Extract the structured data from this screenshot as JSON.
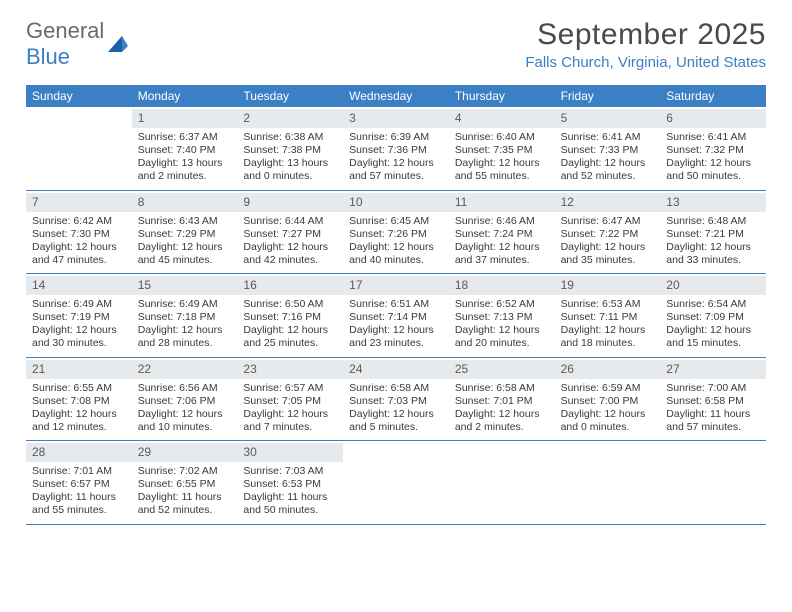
{
  "logo": {
    "word1": "General",
    "word2": "Blue"
  },
  "header": {
    "month_title": "September 2025",
    "location": "Falls Church, Virginia, United States"
  },
  "colors": {
    "header_bar": "#3b7fc4",
    "daynum_bg": "#e7eaed",
    "text": "#3a3a3a",
    "location_text": "#3b7fc4",
    "row_border": "#3b7fc4",
    "background": "#ffffff"
  },
  "weekdays": [
    "Sunday",
    "Monday",
    "Tuesday",
    "Wednesday",
    "Thursday",
    "Friday",
    "Saturday"
  ],
  "weeks": [
    [
      {
        "empty": true
      },
      {
        "n": "1",
        "sr": "Sunrise: 6:37 AM",
        "ss": "Sunset: 7:40 PM",
        "dl": "Daylight: 13 hours and 2 minutes."
      },
      {
        "n": "2",
        "sr": "Sunrise: 6:38 AM",
        "ss": "Sunset: 7:38 PM",
        "dl": "Daylight: 13 hours and 0 minutes."
      },
      {
        "n": "3",
        "sr": "Sunrise: 6:39 AM",
        "ss": "Sunset: 7:36 PM",
        "dl": "Daylight: 12 hours and 57 minutes."
      },
      {
        "n": "4",
        "sr": "Sunrise: 6:40 AM",
        "ss": "Sunset: 7:35 PM",
        "dl": "Daylight: 12 hours and 55 minutes."
      },
      {
        "n": "5",
        "sr": "Sunrise: 6:41 AM",
        "ss": "Sunset: 7:33 PM",
        "dl": "Daylight: 12 hours and 52 minutes."
      },
      {
        "n": "6",
        "sr": "Sunrise: 6:41 AM",
        "ss": "Sunset: 7:32 PM",
        "dl": "Daylight: 12 hours and 50 minutes."
      }
    ],
    [
      {
        "n": "7",
        "sr": "Sunrise: 6:42 AM",
        "ss": "Sunset: 7:30 PM",
        "dl": "Daylight: 12 hours and 47 minutes."
      },
      {
        "n": "8",
        "sr": "Sunrise: 6:43 AM",
        "ss": "Sunset: 7:29 PM",
        "dl": "Daylight: 12 hours and 45 minutes."
      },
      {
        "n": "9",
        "sr": "Sunrise: 6:44 AM",
        "ss": "Sunset: 7:27 PM",
        "dl": "Daylight: 12 hours and 42 minutes."
      },
      {
        "n": "10",
        "sr": "Sunrise: 6:45 AM",
        "ss": "Sunset: 7:26 PM",
        "dl": "Daylight: 12 hours and 40 minutes."
      },
      {
        "n": "11",
        "sr": "Sunrise: 6:46 AM",
        "ss": "Sunset: 7:24 PM",
        "dl": "Daylight: 12 hours and 37 minutes."
      },
      {
        "n": "12",
        "sr": "Sunrise: 6:47 AM",
        "ss": "Sunset: 7:22 PM",
        "dl": "Daylight: 12 hours and 35 minutes."
      },
      {
        "n": "13",
        "sr": "Sunrise: 6:48 AM",
        "ss": "Sunset: 7:21 PM",
        "dl": "Daylight: 12 hours and 33 minutes."
      }
    ],
    [
      {
        "n": "14",
        "sr": "Sunrise: 6:49 AM",
        "ss": "Sunset: 7:19 PM",
        "dl": "Daylight: 12 hours and 30 minutes."
      },
      {
        "n": "15",
        "sr": "Sunrise: 6:49 AM",
        "ss": "Sunset: 7:18 PM",
        "dl": "Daylight: 12 hours and 28 minutes."
      },
      {
        "n": "16",
        "sr": "Sunrise: 6:50 AM",
        "ss": "Sunset: 7:16 PM",
        "dl": "Daylight: 12 hours and 25 minutes."
      },
      {
        "n": "17",
        "sr": "Sunrise: 6:51 AM",
        "ss": "Sunset: 7:14 PM",
        "dl": "Daylight: 12 hours and 23 minutes."
      },
      {
        "n": "18",
        "sr": "Sunrise: 6:52 AM",
        "ss": "Sunset: 7:13 PM",
        "dl": "Daylight: 12 hours and 20 minutes."
      },
      {
        "n": "19",
        "sr": "Sunrise: 6:53 AM",
        "ss": "Sunset: 7:11 PM",
        "dl": "Daylight: 12 hours and 18 minutes."
      },
      {
        "n": "20",
        "sr": "Sunrise: 6:54 AM",
        "ss": "Sunset: 7:09 PM",
        "dl": "Daylight: 12 hours and 15 minutes."
      }
    ],
    [
      {
        "n": "21",
        "sr": "Sunrise: 6:55 AM",
        "ss": "Sunset: 7:08 PM",
        "dl": "Daylight: 12 hours and 12 minutes."
      },
      {
        "n": "22",
        "sr": "Sunrise: 6:56 AM",
        "ss": "Sunset: 7:06 PM",
        "dl": "Daylight: 12 hours and 10 minutes."
      },
      {
        "n": "23",
        "sr": "Sunrise: 6:57 AM",
        "ss": "Sunset: 7:05 PM",
        "dl": "Daylight: 12 hours and 7 minutes."
      },
      {
        "n": "24",
        "sr": "Sunrise: 6:58 AM",
        "ss": "Sunset: 7:03 PM",
        "dl": "Daylight: 12 hours and 5 minutes."
      },
      {
        "n": "25",
        "sr": "Sunrise: 6:58 AM",
        "ss": "Sunset: 7:01 PM",
        "dl": "Daylight: 12 hours and 2 minutes."
      },
      {
        "n": "26",
        "sr": "Sunrise: 6:59 AM",
        "ss": "Sunset: 7:00 PM",
        "dl": "Daylight: 12 hours and 0 minutes."
      },
      {
        "n": "27",
        "sr": "Sunrise: 7:00 AM",
        "ss": "Sunset: 6:58 PM",
        "dl": "Daylight: 11 hours and 57 minutes."
      }
    ],
    [
      {
        "n": "28",
        "sr": "Sunrise: 7:01 AM",
        "ss": "Sunset: 6:57 PM",
        "dl": "Daylight: 11 hours and 55 minutes."
      },
      {
        "n": "29",
        "sr": "Sunrise: 7:02 AM",
        "ss": "Sunset: 6:55 PM",
        "dl": "Daylight: 11 hours and 52 minutes."
      },
      {
        "n": "30",
        "sr": "Sunrise: 7:03 AM",
        "ss": "Sunset: 6:53 PM",
        "dl": "Daylight: 11 hours and 50 minutes."
      },
      {
        "empty": true
      },
      {
        "empty": true
      },
      {
        "empty": true
      },
      {
        "empty": true
      }
    ]
  ]
}
